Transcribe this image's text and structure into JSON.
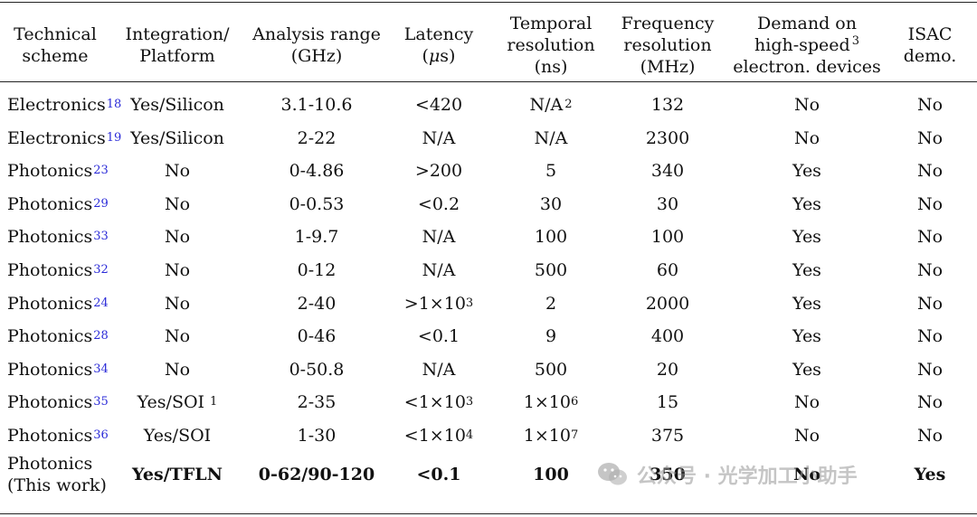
{
  "headers": {
    "scheme_1": "Technical",
    "scheme_2": "scheme",
    "platform_1": "Integration/",
    "platform_2": "Platform",
    "range_1": "Analysis range",
    "range_2": "(GHz)",
    "latency_1": "Latency",
    "latency_2a": "(",
    "latency_mu": "μ",
    "latency_2b": "s)",
    "temporal_1": "Temporal",
    "temporal_2": "resolution",
    "temporal_3": "(ns)",
    "freq_1": "Frequency",
    "freq_2": "resolution",
    "freq_3": "(MHz)",
    "demand_1": "Demand on",
    "demand_2": "high-speed",
    "demand_2_note": "3",
    "demand_3": "electron. devices",
    "isac_1": "ISAC",
    "isac_2": "demo."
  },
  "rows": [
    {
      "scheme": "Electronics",
      "cite": "18",
      "platform": "Yes/Silicon",
      "platform_note": "",
      "range": "3.1-10.6",
      "latency": "<420",
      "latency_exp": "",
      "temporal": "N/A",
      "temporal_exp": "",
      "temporal_note": "2",
      "freq": "132",
      "demand": "No",
      "isac": "No"
    },
    {
      "scheme": "Electronics",
      "cite": "19",
      "platform": "Yes/Silicon",
      "platform_note": "",
      "range": "2-22",
      "latency": "N/A",
      "latency_exp": "",
      "temporal": "N/A",
      "temporal_exp": "",
      "temporal_note": "",
      "freq": "2300",
      "demand": "No",
      "isac": "No"
    },
    {
      "scheme": "Photonics",
      "cite": "23",
      "platform": "No",
      "platform_note": "",
      "range": "0-4.86",
      "latency": ">200",
      "latency_exp": "",
      "temporal": "5",
      "temporal_exp": "",
      "temporal_note": "",
      "freq": "340",
      "demand": "Yes",
      "isac": "No"
    },
    {
      "scheme": "Photonics",
      "cite": "29",
      "platform": "No",
      "platform_note": "",
      "range": "0-0.53",
      "latency": "<0.2",
      "latency_exp": "",
      "temporal": "30",
      "temporal_exp": "",
      "temporal_note": "",
      "freq": "30",
      "demand": "Yes",
      "isac": "No"
    },
    {
      "scheme": "Photonics",
      "cite": "33",
      "platform": "No",
      "platform_note": "",
      "range": "1-9.7",
      "latency": "N/A",
      "latency_exp": "",
      "temporal": "100",
      "temporal_exp": "",
      "temporal_note": "",
      "freq": "100",
      "demand": "Yes",
      "isac": "No"
    },
    {
      "scheme": "Photonics",
      "cite": "32",
      "platform": "No",
      "platform_note": "",
      "range": "0-12",
      "latency": "N/A",
      "latency_exp": "",
      "temporal": "500",
      "temporal_exp": "",
      "temporal_note": "",
      "freq": "60",
      "demand": "Yes",
      "isac": "No"
    },
    {
      "scheme": "Photonics",
      "cite": "24",
      "platform": "No",
      "platform_note": "",
      "range": "2-40",
      "latency": ">1×10",
      "latency_exp": "3",
      "temporal": "2",
      "temporal_exp": "",
      "temporal_note": "",
      "freq": "2000",
      "demand": "Yes",
      "isac": "No"
    },
    {
      "scheme": "Photonics",
      "cite": "28",
      "platform": "No",
      "platform_note": "",
      "range": "0-46",
      "latency": "<0.1",
      "latency_exp": "",
      "temporal": "9",
      "temporal_exp": "",
      "temporal_note": "",
      "freq": "400",
      "demand": "Yes",
      "isac": "No"
    },
    {
      "scheme": "Photonics",
      "cite": "34",
      "platform": "No",
      "platform_note": "",
      "range": "0-50.8",
      "latency": "N/A",
      "latency_exp": "",
      "temporal": "500",
      "temporal_exp": "",
      "temporal_note": "",
      "freq": "20",
      "demand": "Yes",
      "isac": "No"
    },
    {
      "scheme": "Photonics",
      "cite": "35",
      "platform": "Yes/SOI",
      "platform_note": "1",
      "range": "2-35",
      "latency": "<1×10",
      "latency_exp": "3",
      "temporal": "1×10",
      "temporal_exp": "6",
      "temporal_note": "",
      "freq": "15",
      "demand": "No",
      "isac": "No"
    },
    {
      "scheme": "Photonics",
      "cite": "36",
      "platform": "Yes/SOI",
      "platform_note": "",
      "range": "1-30",
      "latency": "<1×10",
      "latency_exp": "4",
      "temporal": "1×10",
      "temporal_exp": "7",
      "temporal_note": "",
      "freq": "375",
      "demand": "No",
      "isac": "No"
    }
  ],
  "this_work": {
    "scheme_1": "Photonics",
    "scheme_2": "(This work)",
    "platform": "Yes/TFLN",
    "range": "0-62/90-120",
    "latency": "<0.1",
    "temporal": "100",
    "freq": "350",
    "demand": "No",
    "isac": "Yes"
  },
  "watermark": {
    "icon": "wechat-icon",
    "text": "公众号 · 光学加工小助手"
  }
}
